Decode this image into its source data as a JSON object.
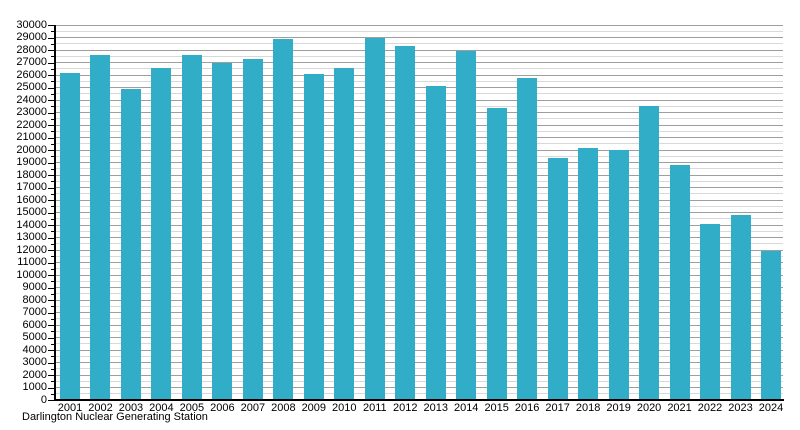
{
  "chart_data": {
    "type": "bar",
    "title": "Darlington Nuclear Generating Station",
    "categories": [
      "2001",
      "2002",
      "2003",
      "2004",
      "2005",
      "2006",
      "2007",
      "2008",
      "2009",
      "2010",
      "2011",
      "2012",
      "2013",
      "2014",
      "2015",
      "2016",
      "2017",
      "2018",
      "2019",
      "2020",
      "2021",
      "2022",
      "2023",
      "2024"
    ],
    "values": [
      26200,
      27600,
      24900,
      26550,
      27600,
      26950,
      27250,
      28850,
      26050,
      26600,
      28950,
      28350,
      25100,
      27950,
      23350,
      25800,
      19400,
      20200,
      20000,
      23500,
      18800,
      14050,
      14800,
      11950
    ],
    "xlabel": "",
    "ylabel": "",
    "ylim": [
      0,
      30000
    ],
    "ytick_step": 1000,
    "minor_grid_step": 500,
    "grid": "horizontal",
    "legend_position": "none",
    "bar_color": "#31adc7",
    "major_grid_color": "#9e9e9e",
    "minor_grid_color": "#d9d9d9",
    "axis_color": "#000000",
    "background_color": "#ffffff"
  }
}
